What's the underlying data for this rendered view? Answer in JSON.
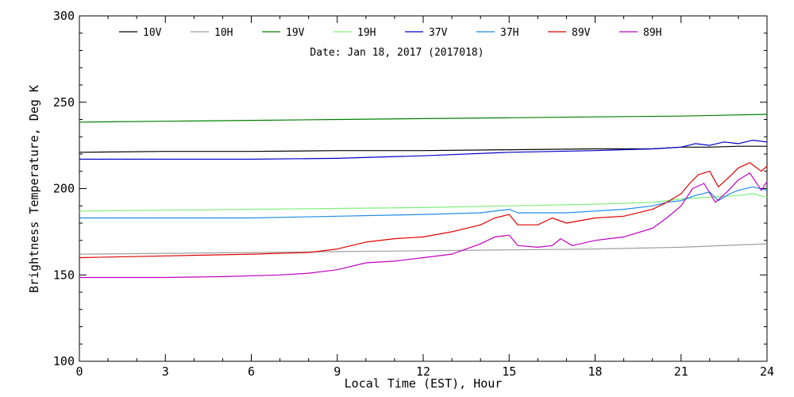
{
  "chart_data": {
    "type": "line",
    "subtitle": "Date: Jan 18, 2017 (2017018)",
    "xlabel": "Local Time (EST), Hour",
    "ylabel": "Brightness Temperature, Deg K",
    "xlim": [
      0,
      24
    ],
    "ylim": [
      100,
      300
    ],
    "xticks": [
      0,
      3,
      6,
      9,
      12,
      15,
      18,
      21,
      24
    ],
    "yticks": [
      100,
      150,
      200,
      250,
      300
    ],
    "grid": false,
    "legend_position": "top, single row",
    "series": [
      {
        "name": "10V",
        "color": "#000000",
        "x": [
          0,
          3,
          6,
          9,
          12,
          15,
          18,
          20,
          21,
          22,
          23,
          24
        ],
        "y": [
          221,
          221.5,
          221.5,
          222,
          222,
          222.5,
          223,
          223,
          224,
          224,
          224.5,
          224.5
        ]
      },
      {
        "name": "10H",
        "color": "#a0a0a0",
        "x": [
          0,
          3,
          6,
          9,
          12,
          15,
          18,
          21,
          24
        ],
        "y": [
          162,
          162.5,
          163,
          163.5,
          164,
          164.5,
          165,
          166,
          168
        ]
      },
      {
        "name": "19V",
        "color": "#008000",
        "x": [
          0,
          3,
          6,
          9,
          12,
          15,
          18,
          21,
          24
        ],
        "y": [
          238.5,
          239,
          239.5,
          240,
          240.5,
          241,
          241.5,
          242,
          243
        ]
      },
      {
        "name": "19H",
        "color": "#7ff07f",
        "x": [
          0,
          3,
          6,
          9,
          12,
          15,
          18,
          20,
          21,
          22,
          23,
          23.5,
          24
        ],
        "y": [
          187,
          187.5,
          188,
          188.5,
          189,
          190,
          191,
          192,
          194,
          195,
          196,
          197,
          195
        ]
      },
      {
        "name": "37V",
        "color": "#0000c8",
        "x": [
          0,
          3,
          6,
          9,
          12,
          15,
          18,
          20,
          21,
          21.5,
          22,
          22.5,
          23,
          23.5,
          24
        ],
        "y": [
          217,
          217,
          217,
          217.5,
          219,
          221,
          222,
          223,
          224,
          226,
          225,
          227,
          226,
          228,
          227
        ]
      },
      {
        "name": "37H",
        "color": "#1e8ce8",
        "x": [
          0,
          3,
          6,
          9,
          12,
          14,
          15,
          15.3,
          16,
          17,
          18,
          19,
          20,
          20.5,
          21,
          21.5,
          22,
          22.3,
          22.7,
          23,
          23.5,
          24
        ],
        "y": [
          183,
          183,
          183,
          184,
          185,
          186,
          188,
          186,
          186,
          186,
          187,
          188,
          190,
          192,
          193,
          196,
          198,
          193,
          197,
          199,
          201,
          199
        ]
      },
      {
        "name": "89V",
        "color": "#e00000",
        "x": [
          0,
          3,
          6,
          8,
          9,
          10,
          11,
          12,
          13,
          14,
          14.5,
          15,
          15.3,
          16,
          16.5,
          17,
          18,
          19,
          20,
          20.5,
          21,
          21.3,
          21.6,
          22,
          22.3,
          22.7,
          23,
          23.4,
          23.8,
          24
        ],
        "y": [
          160,
          161,
          162,
          163,
          165,
          169,
          171,
          172,
          175,
          179,
          183,
          185,
          179,
          179,
          183,
          180,
          183,
          184,
          188,
          192,
          197,
          203,
          208,
          210,
          201,
          207,
          212,
          215,
          210,
          213
        ]
      },
      {
        "name": "89H",
        "color": "#c000c0",
        "x": [
          0,
          3,
          5,
          7,
          8,
          9,
          10,
          11,
          12,
          13,
          14,
          14.5,
          15,
          15.3,
          16,
          16.5,
          16.8,
          17.2,
          18,
          19,
          20,
          20.5,
          21,
          21.4,
          21.8,
          22.2,
          22.6,
          23,
          23.4,
          23.8,
          24
        ],
        "y": [
          148.5,
          148.5,
          149,
          150,
          151,
          153,
          157,
          158,
          160,
          162,
          168,
          172,
          173,
          167,
          166,
          167,
          171,
          167,
          170,
          172,
          177,
          183,
          190,
          200,
          203,
          192,
          198,
          205,
          209,
          199,
          204
        ]
      }
    ]
  }
}
